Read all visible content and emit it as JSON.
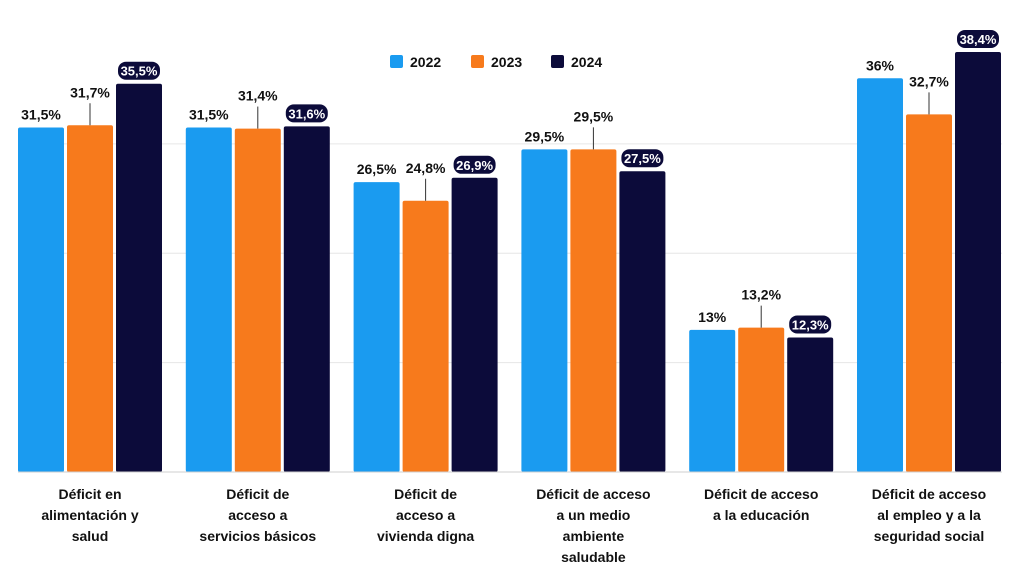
{
  "chart_data": {
    "type": "bar",
    "categories": [
      [
        "Déficit en",
        "alimentación y",
        "salud"
      ],
      [
        "Déficit de",
        "acceso a",
        "servicios básicos"
      ],
      [
        "Déficit de",
        "acceso a",
        "vivienda digna"
      ],
      [
        "Déficit de acceso",
        "a un medio",
        "ambiente",
        "saludable"
      ],
      [
        "Déficit de acceso",
        "a la educación"
      ],
      [
        "Déficit de acceso",
        "al empleo y a la",
        "seguridad social"
      ]
    ],
    "series": [
      {
        "name": "2022",
        "color": "#1a9bf0",
        "values": [
          31.5,
          31.5,
          26.5,
          29.5,
          13,
          36
        ],
        "labels": [
          "31,5%",
          "31,5%",
          "26,5%",
          "29,5%",
          "13%",
          "36%"
        ]
      },
      {
        "name": "2023",
        "color": "#f77a1c",
        "values": [
          31.7,
          31.4,
          24.8,
          29.5,
          13.2,
          32.7
        ],
        "labels": [
          "31,7%",
          "31,4%",
          "24,8%",
          "29,5%",
          "13,2%",
          "32,7%"
        ]
      },
      {
        "name": "2024",
        "color": "#0c0b3a",
        "values": [
          35.5,
          31.6,
          26.9,
          27.5,
          12.3,
          38.4
        ],
        "labels": [
          "35,5%",
          "31,6%",
          "26,9%",
          "27,5%",
          "12,3%",
          "38,4%"
        ]
      }
    ],
    "ylim": [
      0,
      40
    ],
    "grid": true,
    "legend": "top-center",
    "title": "",
    "xlabel": "",
    "ylabel": ""
  }
}
